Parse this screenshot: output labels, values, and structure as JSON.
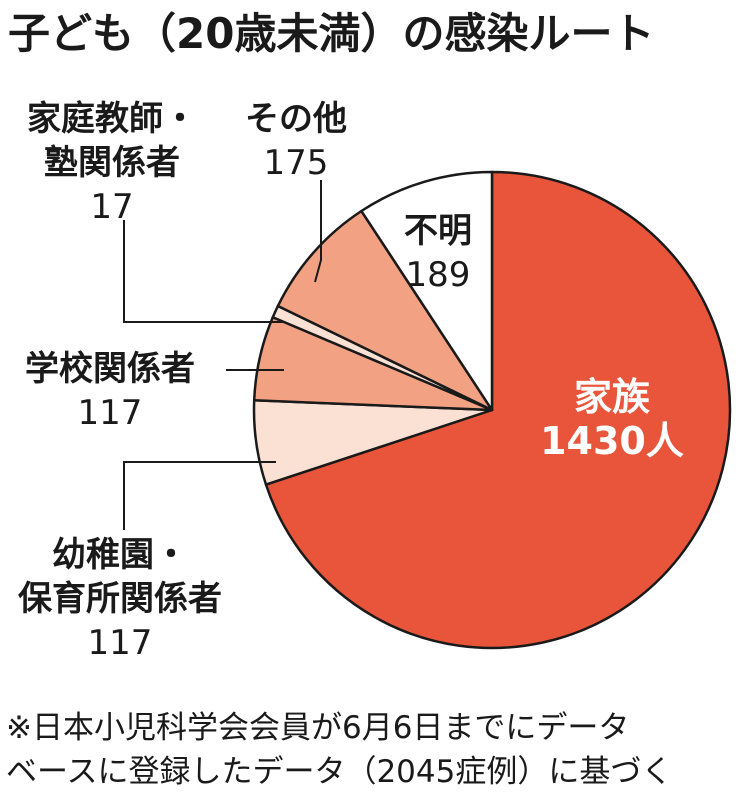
{
  "chart_data": {
    "type": "pie",
    "title": "子ども（20歳未満）の感染ルート",
    "slices": [
      {
        "key": "family",
        "lines": [
          "家族"
        ],
        "value": 1430,
        "value_text": "1430人",
        "color": "#e8553a"
      },
      {
        "key": "daycare",
        "lines": [
          "幼稚園・",
          "保育所関係者"
        ],
        "value": 117,
        "value_text": "117",
        "color": "#fbe0d4"
      },
      {
        "key": "school",
        "lines": [
          "学校関係者"
        ],
        "value": 117,
        "value_text": "117",
        "color": "#f2a283"
      },
      {
        "key": "tutor",
        "lines": [
          "家庭教師・",
          "塾関係者"
        ],
        "value": 17,
        "value_text": "17",
        "color": "#fbe0d4"
      },
      {
        "key": "other",
        "lines": [
          "その他"
        ],
        "value": 175,
        "value_text": "175",
        "color": "#f2a283"
      },
      {
        "key": "unknown",
        "lines": [
          "不明"
        ],
        "value": 189,
        "value_text": "189",
        "color": "#ffffff"
      }
    ],
    "footnote": [
      "※日本小児科学会会員が6月6日までにデータ",
      "ベースに登録したデータ（2045症例）に基づく"
    ]
  }
}
